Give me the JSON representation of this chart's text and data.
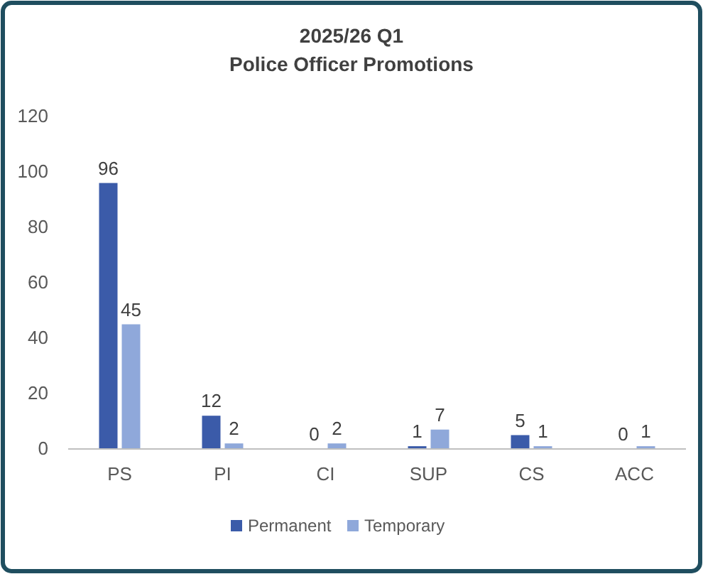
{
  "chart_data": {
    "type": "bar",
    "title": "2025/26 Q1",
    "subtitle": "Police Officer Promotions",
    "categories": [
      "PS",
      "PI",
      "CI",
      "SUP",
      "CS",
      "ACC"
    ],
    "series": [
      {
        "name": "Permanent",
        "color": "#3b5ba9",
        "values": [
          96,
          12,
          0,
          1,
          5,
          0
        ]
      },
      {
        "name": "Temporary",
        "color": "#8fa8da",
        "values": [
          45,
          2,
          2,
          7,
          1,
          1
        ]
      }
    ],
    "ylim": [
      0,
      120
    ],
    "yticks": [
      0,
      20,
      40,
      60,
      80,
      100,
      120
    ],
    "grid": false,
    "legend": "bottom",
    "data_labels": true
  }
}
